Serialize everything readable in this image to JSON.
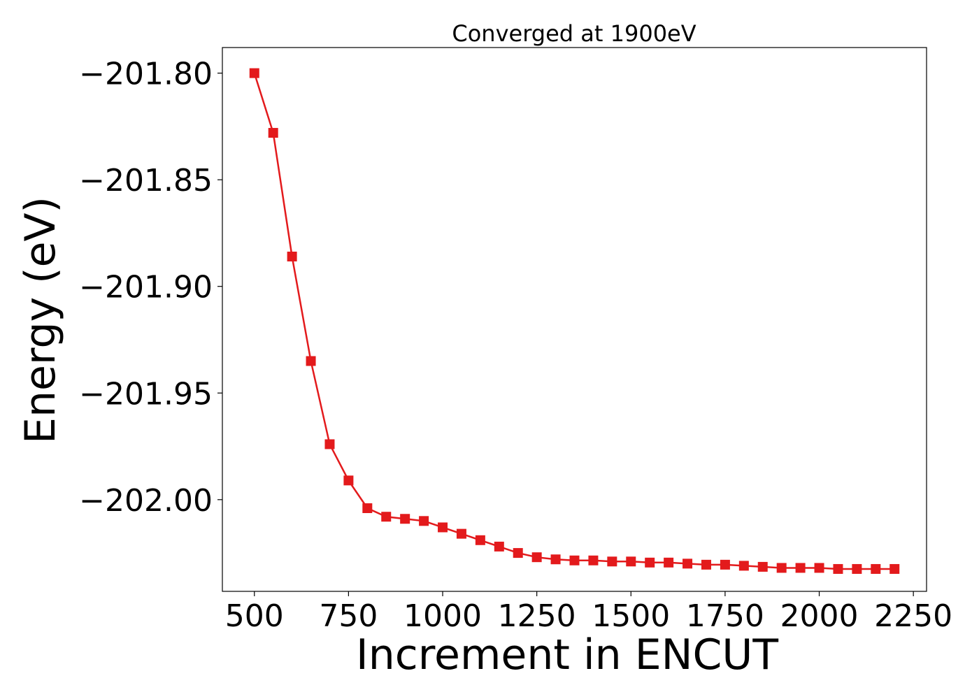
{
  "chart_data": {
    "type": "line",
    "title": "Converged at 1900eV",
    "xlabel": "Increment in ENCUT",
    "ylabel": "Energy (eV)",
    "xlim": [
      415,
      2285
    ],
    "ylim": [
      -202.043,
      -201.788
    ],
    "x_ticks": [
      500,
      750,
      1000,
      1250,
      1500,
      1750,
      2000,
      2250
    ],
    "x_tick_labels": [
      "500",
      "750",
      "1000",
      "1250",
      "1500",
      "1750",
      "2000",
      "2250"
    ],
    "y_ticks": [
      -201.8,
      -201.85,
      -201.9,
      -201.95,
      -202.0
    ],
    "y_tick_labels": [
      "−201.80",
      "−201.85",
      "−201.90",
      "−201.95",
      "−202.00"
    ],
    "grid": false,
    "marker": "square",
    "color": "#e31a1c",
    "series": [
      {
        "x": [
          500,
          550,
          600,
          650,
          700,
          750,
          800,
          850,
          900,
          950,
          1000,
          1050,
          1100,
          1150,
          1200,
          1250,
          1300,
          1350,
          1400,
          1450,
          1500,
          1550,
          1600,
          1650,
          1700,
          1750,
          1800,
          1850,
          1900,
          1950,
          2000,
          2050,
          2100,
          2150,
          2200
        ],
        "y": [
          -201.8,
          -201.828,
          -201.886,
          -201.935,
          -201.974,
          -201.991,
          -202.004,
          -202.008,
          -202.009,
          -202.01,
          -202.013,
          -202.016,
          -202.019,
          -202.022,
          -202.025,
          -202.027,
          -202.028,
          -202.0285,
          -202.0285,
          -202.029,
          -202.029,
          -202.0295,
          -202.0295,
          -202.03,
          -202.0305,
          -202.0305,
          -202.031,
          -202.0315,
          -202.032,
          -202.032,
          -202.032,
          -202.0325,
          -202.0325,
          -202.0325,
          -202.0325
        ]
      }
    ]
  }
}
